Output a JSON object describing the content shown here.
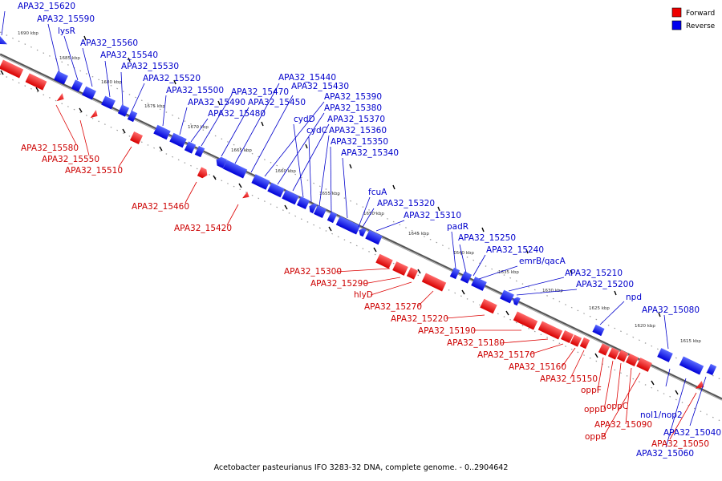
{
  "legend": {
    "forward": {
      "label": "Forward",
      "color": "#ee0000"
    },
    "reverse": {
      "label": "Reverse",
      "color": "#0000ee"
    }
  },
  "caption": "Acetobacter pasteurianus IFO 3283-32 DNA, complete genome. - 0..2904642",
  "ticks": [
    "1690 kbp",
    "1685 kbp",
    "1680 kbp",
    "1675 kbp",
    "1670 kbp",
    "1665 kbp",
    "1660 kbp",
    "1655 kbp",
    "1650 kbp",
    "1645 kbp",
    "1640 kbp",
    "1635 kbp",
    "1630 kbp",
    "1625 kbp",
    "1620 kbp",
    "1615 kbp"
  ],
  "reverse_labels": [
    "APA32_15620",
    "APA32_15590",
    "lysR",
    "APA32_15560",
    "APA32_15540",
    "APA32_15530",
    "APA32_15520",
    "APA32_15500",
    "APA32_15490",
    "APA32_15480",
    "APA32_15470",
    "APA32_15450",
    "APA32_15440",
    "APA32_15430",
    "APA32_15390",
    "APA32_15380",
    "APA32_15370",
    "cydD",
    "cydC",
    "APA32_15360",
    "APA32_15350",
    "APA32_15340",
    "fcuA",
    "APA32_15320",
    "APA32_15310",
    "padR",
    "APA32_15250",
    "APA32_15240",
    "emrB/qacA",
    "APA32_15210",
    "APA32_15200",
    "npd",
    "APA32_15080",
    "nol1/nop2",
    "APA32_15040",
    "APA32_15060"
  ],
  "forward_labels": [
    "APA32_15580",
    "APA32_15550",
    "APA32_15510",
    "APA32_15460",
    "APA32_15420",
    "APA32_15300",
    "APA32_15290",
    "hlyD",
    "APA32_15270",
    "APA32_15220",
    "APA32_15190",
    "APA32_15180",
    "APA32_15170",
    "APA32_15160",
    "APA32_15150",
    "oppF",
    "oppD",
    "oppC",
    "APA32_15090",
    "oppB",
    "APA32_15050"
  ]
}
